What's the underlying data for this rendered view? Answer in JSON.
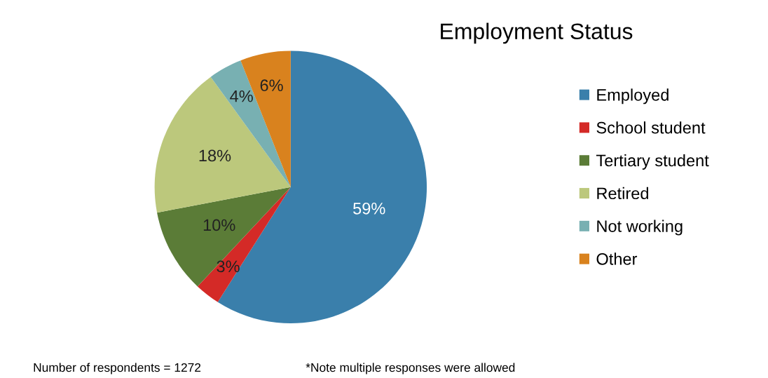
{
  "chart_data": {
    "type": "pie",
    "title": "Employment Status",
    "categories": [
      "Employed",
      "School student",
      "Tertiary student",
      "Retired",
      "Not working",
      "Other"
    ],
    "values": [
      59,
      3,
      10,
      18,
      4,
      6
    ],
    "colors": [
      "#3a7fab",
      "#d42a27",
      "#5b7c37",
      "#bcc87c",
      "#78b0b2",
      "#d9821e"
    ],
    "value_labels": [
      "59%",
      "3%",
      "10%",
      "18%",
      "4%",
      "6%"
    ],
    "legend": "right",
    "annotations": [
      "Number of respondents = 1272",
      "*Note multiple responses were allowed"
    ]
  }
}
